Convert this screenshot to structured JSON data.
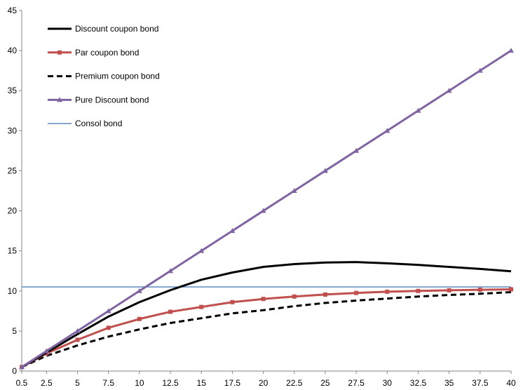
{
  "chart_data": {
    "type": "line",
    "title": "",
    "xlabel": "",
    "ylabel": "",
    "x": [
      0.5,
      2.5,
      5,
      7.5,
      10,
      12.5,
      15,
      17.5,
      20,
      22.5,
      25,
      27.5,
      30,
      32.5,
      35,
      37.5,
      40
    ],
    "x_tick_labels": [
      "0.5",
      "2.5",
      "5",
      "7.5",
      "10",
      "12.5",
      "15",
      "17.5",
      "20",
      "22.5",
      "25",
      "27.5",
      "30",
      "32.5",
      "35",
      "37.5",
      "40"
    ],
    "y_ticks": [
      0,
      5,
      10,
      15,
      20,
      25,
      30,
      35,
      40,
      45
    ],
    "ylim": [
      0,
      45
    ],
    "grid": false,
    "legend_position": "top-left",
    "series": [
      {
        "name": "Discount coupon bond",
        "color": "#000000",
        "style": "solid",
        "marker": "none",
        "values": [
          0.5,
          2.3,
          4.6,
          6.8,
          8.6,
          10.1,
          11.4,
          12.3,
          13.0,
          13.35,
          13.55,
          13.6,
          13.45,
          13.25,
          13.0,
          12.75,
          12.45
        ]
      },
      {
        "name": "Par coupon bond",
        "color": "#C0504D",
        "style": "solid",
        "marker": "square",
        "values": [
          0.5,
          2.2,
          3.9,
          5.4,
          6.5,
          7.4,
          8.0,
          8.6,
          9.0,
          9.3,
          9.55,
          9.75,
          9.9,
          10.0,
          10.08,
          10.15,
          10.2
        ]
      },
      {
        "name": "Premium coupon bond",
        "color": "#000000",
        "style": "dashed",
        "marker": "none",
        "values": [
          0.5,
          1.9,
          3.2,
          4.3,
          5.2,
          6.0,
          6.6,
          7.2,
          7.6,
          8.1,
          8.5,
          8.8,
          9.05,
          9.3,
          9.5,
          9.65,
          9.85
        ]
      },
      {
        "name": "Pure Discount bond",
        "color": "#8064A2",
        "style": "solid",
        "marker": "triangle",
        "values": [
          0.5,
          2.5,
          5,
          7.5,
          10,
          12.5,
          15,
          17.5,
          20,
          22.5,
          25,
          27.5,
          30,
          32.5,
          35,
          37.5,
          40
        ]
      },
      {
        "name": "Consol bond",
        "color": "#4F81BD",
        "style": "solid",
        "marker": "none",
        "values": [
          10.5,
          10.5,
          10.5,
          10.5,
          10.5,
          10.5,
          10.5,
          10.5,
          10.5,
          10.5,
          10.5,
          10.5,
          10.5,
          10.5,
          10.5,
          10.5,
          10.5
        ]
      }
    ]
  },
  "colors": {
    "axis": "#868686",
    "background": "#ffffff"
  }
}
